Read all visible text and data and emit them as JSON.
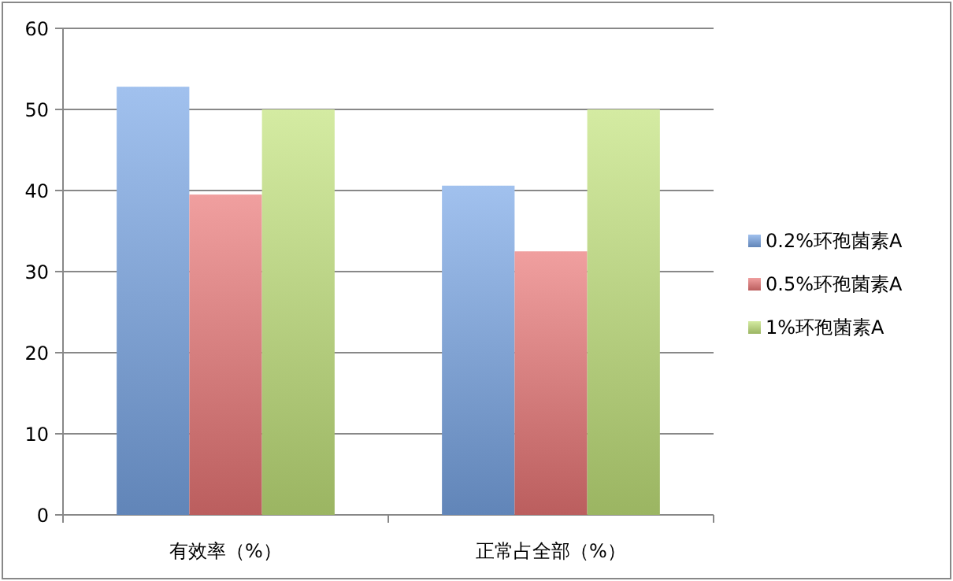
{
  "chart_data": {
    "type": "bar",
    "categories": [
      "有效率（%）",
      "正常占全部（%）"
    ],
    "series": [
      {
        "name": "0.2%环孢菌素A",
        "color": "#79a6e6",
        "values": [
          52.8,
          40.6
        ]
      },
      {
        "name": "0.5%环孢菌素A",
        "color": "#ea7676",
        "values": [
          39.5,
          32.5
        ]
      },
      {
        "name": "1%环孢菌素A",
        "color": "#c2e27a",
        "values": [
          50,
          50
        ]
      }
    ],
    "ylim": [
      0,
      60
    ],
    "yticks": [
      0,
      10,
      20,
      30,
      40,
      50,
      60
    ],
    "grid": "y",
    "legend": "right"
  }
}
